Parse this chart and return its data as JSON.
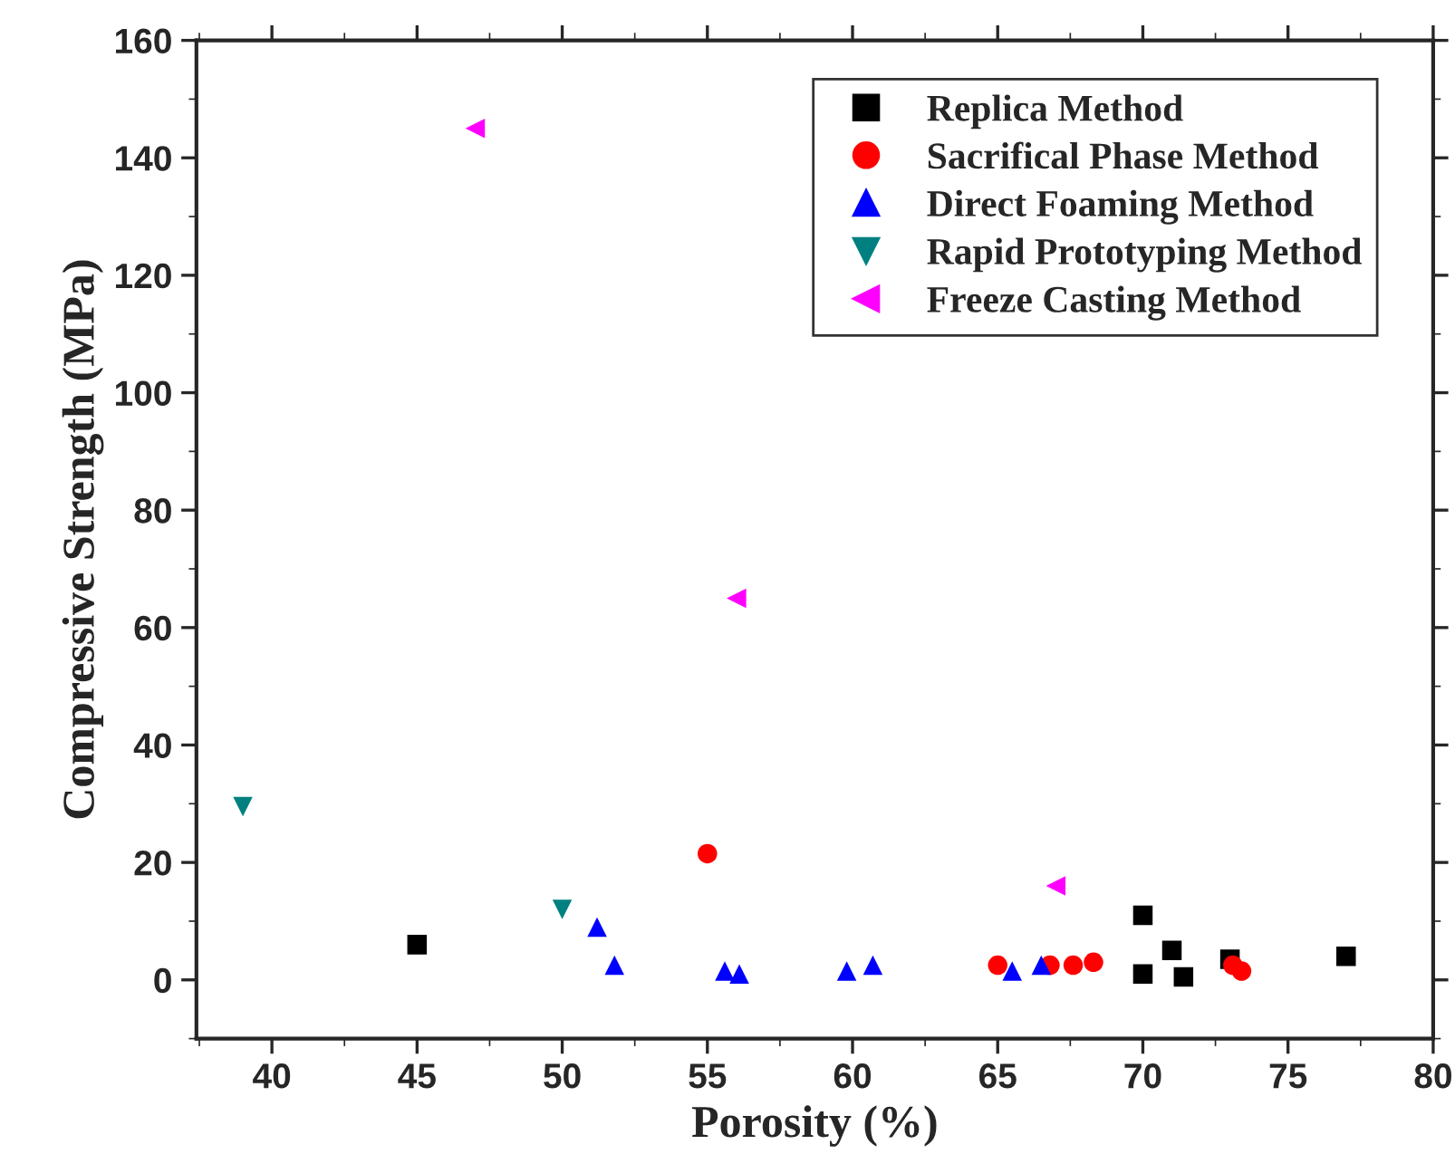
{
  "chart_data": {
    "type": "scatter",
    "xlabel": "Porosity (%)",
    "ylabel": "Compressive Strength (MPa)",
    "xlim": [
      37.4,
      80
    ],
    "xticks": [
      40,
      45,
      50,
      55,
      60,
      65,
      70,
      75,
      80
    ],
    "ylim": [
      -10,
      160
    ],
    "yticks": [
      0,
      20,
      40,
      60,
      80,
      100,
      120,
      140,
      160
    ],
    "grid": false,
    "legend": "top right",
    "series": [
      {
        "name": "Replica Method",
        "color": "#000000",
        "marker": "square",
        "x": [
          45,
          70,
          70,
          71,
          71.4,
          73,
          77
        ],
        "values": [
          6,
          11,
          1,
          5,
          0.5,
          3.5,
          4
        ]
      },
      {
        "name": "Sacrifical Phase Method",
        "color": "#ff0000",
        "marker": "circle",
        "x": [
          55,
          65,
          66.8,
          67.6,
          68.3,
          73.1,
          73.4
        ],
        "values": [
          21.5,
          2.5,
          2.5,
          2.5,
          3,
          2.5,
          1.5
        ]
      },
      {
        "name": "Direct Foaming Method",
        "color": "#0000ff",
        "marker": "triangle",
        "x": [
          51.2,
          51.8,
          55.6,
          56.1,
          59.8,
          60.7,
          65.5,
          66.5
        ],
        "values": [
          9,
          2.5,
          1.5,
          1,
          1.5,
          2.5,
          1.5,
          2.5
        ]
      },
      {
        "name": "Rapid Prototyping Method",
        "color": "#008080",
        "marker": "triangle_down",
        "x": [
          39,
          50
        ],
        "values": [
          29.5,
          12
        ]
      },
      {
        "name": "Freeze Casting Method",
        "color": "#ff00ff",
        "marker": "triangle_left",
        "x": [
          47,
          56,
          67
        ],
        "values": [
          145,
          65,
          16
        ]
      }
    ]
  }
}
